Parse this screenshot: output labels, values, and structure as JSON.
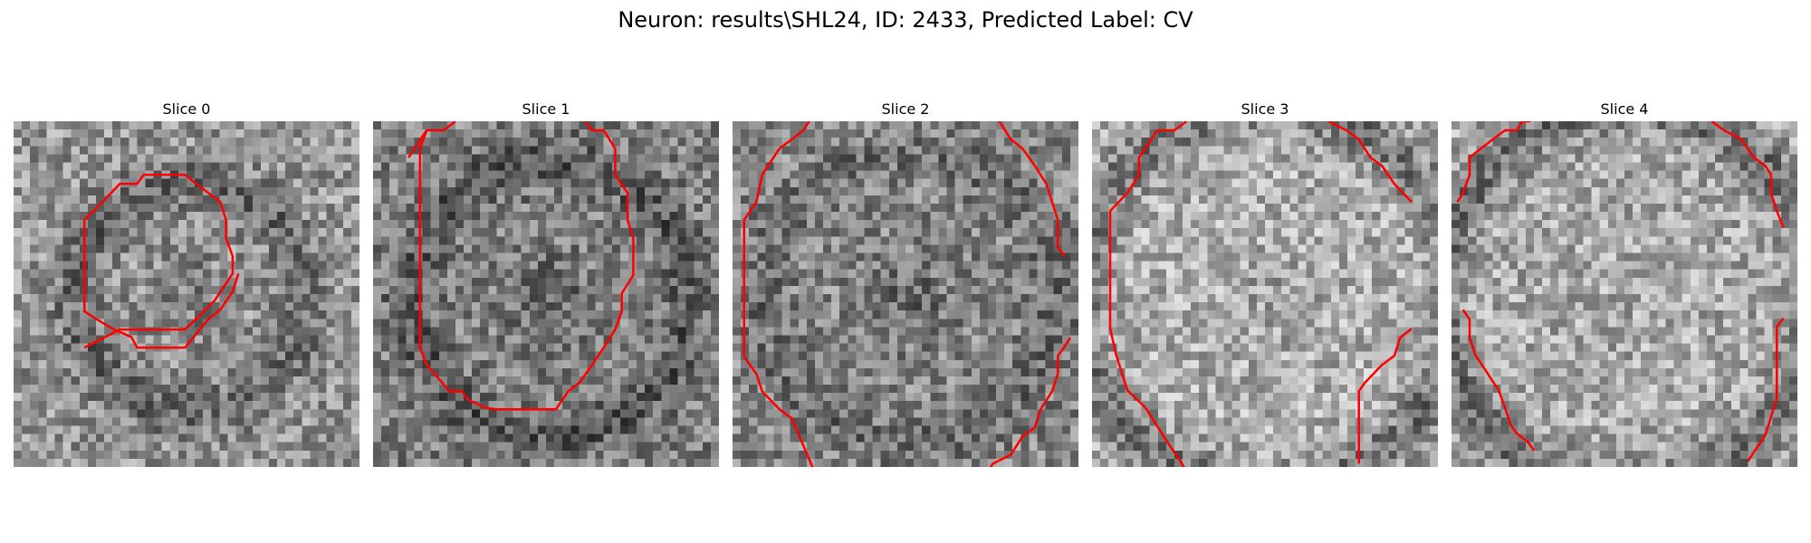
{
  "figure": {
    "title": "Neuron: results\\SHL24, ID: 2433, Predicted Label: CV"
  },
  "style": {
    "contour_color": "#ff0000"
  },
  "panels": [
    {
      "title": "Slice 0",
      "contours": [
        [
          [
            8.6,
            27.5
          ],
          [
            12.9,
            25.3
          ],
          [
            16.5,
            25.3
          ],
          [
            20.8,
            25.3
          ],
          [
            22.2,
            24.0
          ],
          [
            24.4,
            21.8
          ],
          [
            26.6,
            18.5
          ],
          [
            26.6,
            16.4
          ],
          [
            25.8,
            14.2
          ],
          [
            25.8,
            12.0
          ],
          [
            25.1,
            9.8
          ],
          [
            22.2,
            7.6
          ],
          [
            20.8,
            6.5
          ],
          [
            17.9,
            6.5
          ],
          [
            15.8,
            6.5
          ],
          [
            15.0,
            7.6
          ],
          [
            12.9,
            7.6
          ],
          [
            10.8,
            9.8
          ],
          [
            8.6,
            12.0
          ],
          [
            8.6,
            20.0
          ],
          [
            8.6,
            23.1
          ],
          [
            10.0,
            24.0
          ],
          [
            12.2,
            25.3
          ],
          [
            14.3,
            26.2
          ],
          [
            15.0,
            27.5
          ],
          [
            18.6,
            27.5
          ],
          [
            20.8,
            27.5
          ],
          [
            23.7,
            24.0
          ],
          [
            25.1,
            22.9
          ],
          [
            26.6,
            20.7
          ],
          [
            27.3,
            18.5
          ]
        ]
      ]
    },
    {
      "title": "Slice 1",
      "contours": [
        [
          [
            4.3,
            4.4
          ],
          [
            6.5,
            1.1
          ],
          [
            8.6,
            1.1
          ],
          [
            10.0,
            0.0
          ]
        ],
        [
          [
            6.5,
            1.1
          ],
          [
            5.7,
            3.3
          ],
          [
            5.7,
            8.7
          ],
          [
            5.7,
            27.5
          ],
          [
            6.5,
            29.6
          ],
          [
            9.3,
            32.8
          ],
          [
            10.8,
            32.8
          ],
          [
            11.5,
            33.8
          ],
          [
            13.6,
            34.8
          ],
          [
            15.0,
            35.0
          ],
          [
            20.1,
            35.0
          ],
          [
            22.2,
            35.0
          ],
          [
            23.7,
            32.8
          ],
          [
            25.1,
            31.7
          ],
          [
            26.6,
            29.6
          ],
          [
            28.0,
            27.5
          ],
          [
            29.4,
            25.3
          ],
          [
            30.2,
            23.1
          ],
          [
            30.2,
            20.9
          ],
          [
            31.6,
            18.7
          ],
          [
            31.6,
            14.2
          ],
          [
            30.9,
            12.0
          ],
          [
            30.9,
            8.7
          ],
          [
            29.4,
            6.5
          ],
          [
            29.4,
            3.3
          ],
          [
            28.7,
            2.2
          ],
          [
            28.0,
            1.1
          ],
          [
            26.6,
            1.1
          ],
          [
            25.8,
            0.0
          ]
        ]
      ]
    },
    {
      "title": "Slice 2",
      "contours": [
        [
          [
            5.7,
            3.3
          ],
          [
            7.2,
            2.2
          ],
          [
            8.6,
            1.1
          ],
          [
            9.3,
            0.0
          ]
        ],
        [
          [
            5.7,
            3.3
          ],
          [
            3.6,
            6.5
          ],
          [
            2.9,
            9.8
          ],
          [
            1.4,
            12.0
          ],
          [
            1.4,
            28.6
          ],
          [
            2.9,
            30.7
          ],
          [
            3.6,
            32.8
          ],
          [
            5.7,
            35.0
          ],
          [
            7.2,
            36.1
          ],
          [
            8.6,
            39.4
          ],
          [
            10.0,
            42.7
          ],
          [
            12.9,
            46.0
          ],
          [
            15.8,
            46.0
          ],
          [
            17.2,
            47.0
          ],
          [
            20.1,
            47.0
          ],
          [
            22.2,
            46.0
          ],
          [
            25.1,
            46.0
          ],
          [
            28.7,
            43.8
          ],
          [
            29.4,
            42.7
          ],
          [
            30.9,
            42.7
          ],
          [
            31.6,
            41.6
          ],
          [
            33.8,
            40.5
          ],
          [
            35.2,
            38.3
          ],
          [
            36.7,
            37.2
          ],
          [
            37.4,
            35.0
          ],
          [
            38.8,
            32.8
          ],
          [
            39.5,
            30.7
          ],
          [
            39.5,
            28.5
          ],
          [
            40.3,
            27.4
          ],
          [
            41.0,
            26.3
          ]
        ],
        [
          [
            40.3,
            16.4
          ],
          [
            39.5,
            15.3
          ],
          [
            39.5,
            12.0
          ],
          [
            38.8,
            9.8
          ],
          [
            38.1,
            7.6
          ],
          [
            36.7,
            5.4
          ],
          [
            35.2,
            3.3
          ],
          [
            33.8,
            2.2
          ],
          [
            33.1,
            1.1
          ],
          [
            32.4,
            0.0
          ]
        ]
      ]
    },
    {
      "title": "Slice 3",
      "contours": [
        [
          [
            7.9,
            1.1
          ],
          [
            10.0,
            1.1
          ],
          [
            11.5,
            0.0
          ]
        ],
        [
          [
            7.9,
            1.1
          ],
          [
            6.5,
            3.3
          ],
          [
            5.7,
            4.4
          ],
          [
            5.7,
            6.5
          ],
          [
            4.3,
            8.7
          ],
          [
            2.2,
            10.9
          ],
          [
            2.2,
            12.0
          ],
          [
            2.2,
            15.3
          ],
          [
            2.2,
            17.4
          ],
          [
            2.2,
            25.1
          ],
          [
            2.9,
            28.3
          ],
          [
            3.6,
            30.5
          ],
          [
            4.3,
            32.7
          ],
          [
            6.5,
            34.8
          ],
          [
            7.9,
            37.0
          ],
          [
            8.6,
            38.1
          ],
          [
            9.3,
            39.2
          ],
          [
            10.8,
            41.4
          ],
          [
            11.5,
            42.6
          ]
        ],
        [
          [
            38.8,
            25.2
          ],
          [
            37.4,
            26.3
          ],
          [
            36.7,
            28.5
          ],
          [
            35.2,
            29.6
          ],
          [
            33.1,
            31.8
          ],
          [
            32.4,
            32.8
          ],
          [
            32.4,
            41.6
          ]
        ],
        [
          [
            28.7,
            0.0
          ],
          [
            30.9,
            1.1
          ],
          [
            32.4,
            2.2
          ],
          [
            33.8,
            4.4
          ],
          [
            35.2,
            5.4
          ],
          [
            36.7,
            7.6
          ],
          [
            38.8,
            9.8
          ]
        ]
      ]
    },
    {
      "title": "Slice 4",
      "contours": [
        [
          [
            0.7,
            9.8
          ],
          [
            1.4,
            8.7
          ],
          [
            2.2,
            6.5
          ],
          [
            2.2,
            4.4
          ],
          [
            3.6,
            3.3
          ],
          [
            5.0,
            2.2
          ],
          [
            6.5,
            1.1
          ],
          [
            7.9,
            1.1
          ],
          [
            8.6,
            0.0
          ],
          [
            9.6,
            0.0
          ]
        ],
        [
          [
            1.4,
            22.9
          ],
          [
            2.2,
            24.1
          ],
          [
            2.2,
            26.3
          ],
          [
            2.9,
            28.4
          ],
          [
            4.3,
            30.5
          ],
          [
            5.0,
            31.6
          ],
          [
            5.7,
            32.6
          ],
          [
            6.5,
            34.8
          ],
          [
            7.2,
            36.9
          ],
          [
            7.9,
            37.9
          ],
          [
            9.3,
            39.0
          ],
          [
            10.0,
            40.0
          ]
        ],
        [
          [
            31.6,
            0.0
          ],
          [
            33.1,
            1.1
          ],
          [
            35.2,
            2.2
          ],
          [
            36.7,
            4.4
          ],
          [
            38.1,
            5.4
          ],
          [
            38.8,
            6.5
          ],
          [
            38.8,
            8.7
          ],
          [
            39.5,
            10.9
          ],
          [
            40.3,
            12.9
          ]
        ],
        [
          [
            40.3,
            23.9
          ],
          [
            39.5,
            25.0
          ],
          [
            39.5,
            27.2
          ],
          [
            39.5,
            33.7
          ],
          [
            38.8,
            35.9
          ],
          [
            38.1,
            38.1
          ],
          [
            37.4,
            39.2
          ],
          [
            36.7,
            40.2
          ],
          [
            36.0,
            41.3
          ]
        ]
      ]
    }
  ]
}
